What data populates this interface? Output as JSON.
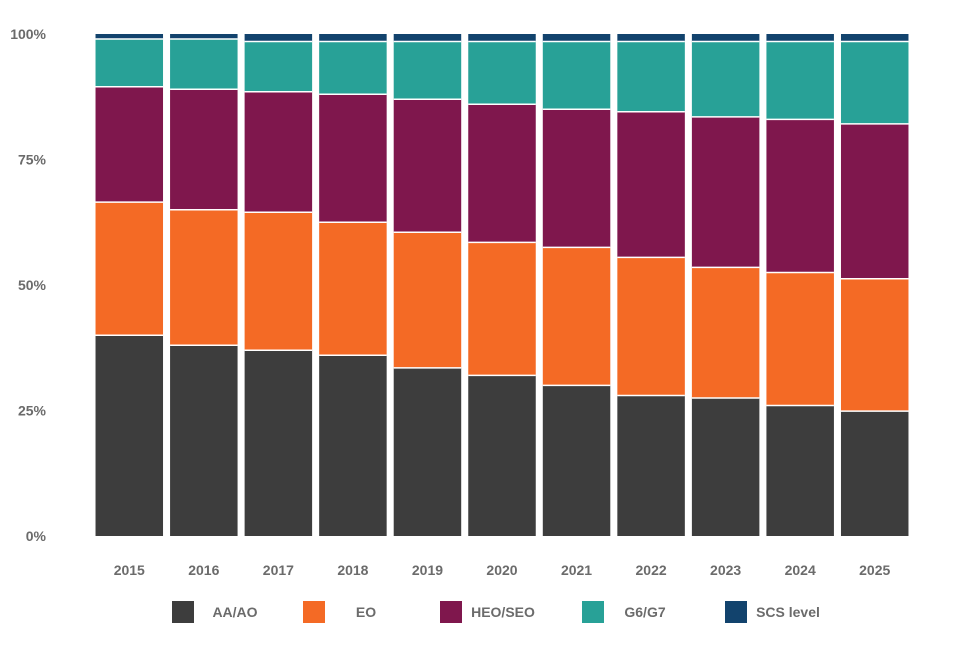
{
  "chart_data": {
    "type": "bar",
    "stacked": true,
    "normalized": true,
    "categories": [
      "2015",
      "2016",
      "2017",
      "2018",
      "2019",
      "2020",
      "2021",
      "2022",
      "2023",
      "2024",
      "2025"
    ],
    "series": [
      {
        "name": "AA/AO",
        "color": "#3d3d3d",
        "values": [
          40,
          38,
          37,
          36,
          33.5,
          32,
          30,
          28,
          27.5,
          26,
          25
        ]
      },
      {
        "name": "EO",
        "color": "#f46a25",
        "values": [
          26.5,
          27,
          27.5,
          26.5,
          27,
          26.5,
          27.5,
          27.5,
          26,
          26.5,
          26.5
        ]
      },
      {
        "name": "HEO/SEO",
        "color": "#7f174d",
        "values": [
          23,
          24,
          24,
          25.5,
          26.5,
          27.5,
          27.5,
          29,
          30,
          30.5,
          31
        ]
      },
      {
        "name": "G6/G7",
        "color": "#28a197",
        "values": [
          9.5,
          10,
          10,
          10.5,
          11.5,
          12.5,
          13.5,
          14,
          15,
          15.5,
          16.5
        ]
      },
      {
        "name": "SCS level",
        "color": "#12436d",
        "values": [
          1,
          1,
          1.5,
          1.5,
          1.5,
          1.5,
          1.5,
          1.5,
          1.5,
          1.5,
          1.5
        ]
      }
    ],
    "yticks": [
      "0%",
      "25%",
      "50%",
      "75%",
      "100%"
    ],
    "ylim": [
      0,
      100
    ],
    "grid": false,
    "legend_position": "bottom"
  }
}
